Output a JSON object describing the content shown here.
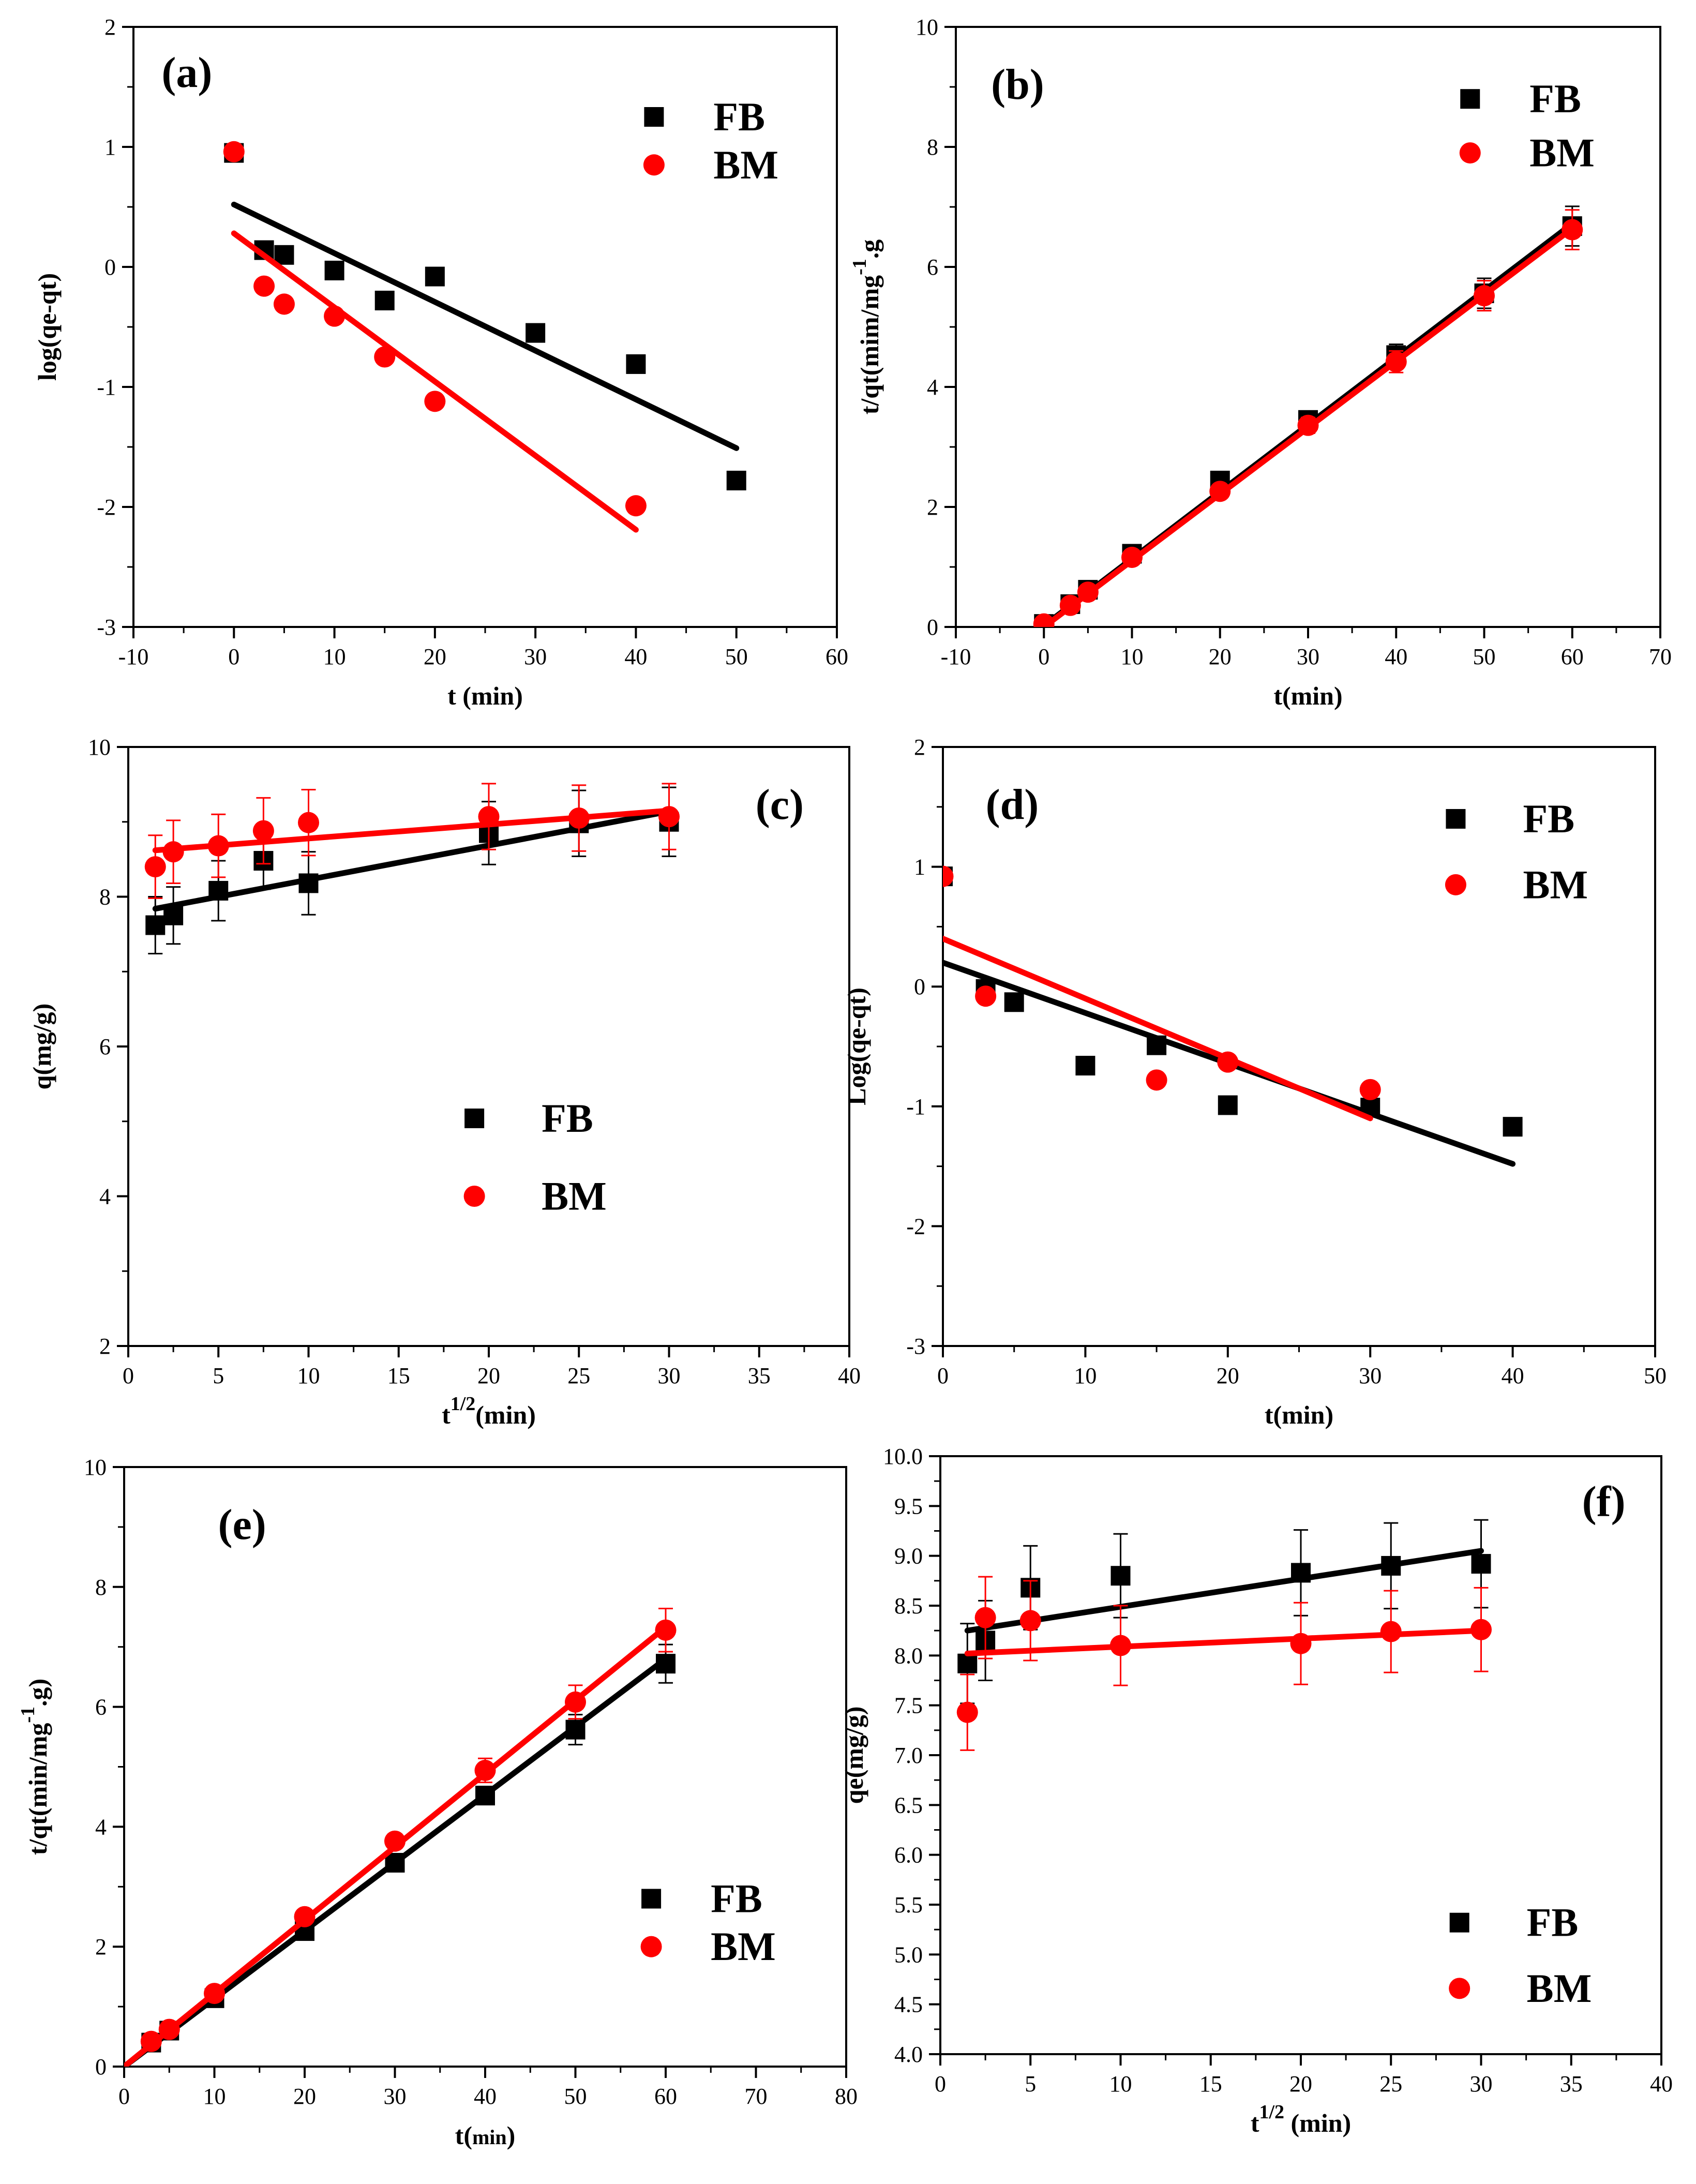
{
  "chart_data": [
    {
      "panel": "(a)",
      "type": "scatter",
      "xlabel": "t (min)",
      "ylabel": "log(qe-qt)",
      "xlim": [
        -10,
        60
      ],
      "ylim": [
        -3,
        2
      ],
      "xticks": [
        -10,
        0,
        10,
        20,
        30,
        40,
        50,
        60
      ],
      "yticks": [
        -3,
        -2,
        -1,
        0,
        1,
        2
      ],
      "legend_position": "top-right",
      "series": [
        {
          "name": "FB",
          "marker": "square",
          "color": "#000000",
          "x": [
            0,
            3,
            5,
            10,
            15,
            20,
            30,
            40,
            50
          ],
          "y": [
            0.95,
            0.14,
            0.1,
            -0.03,
            -0.28,
            -0.08,
            -0.55,
            -0.81,
            -1.78
          ],
          "fit": {
            "x": [
              0,
              50
            ],
            "y": [
              0.52,
              -1.51
            ]
          }
        },
        {
          "name": "BM",
          "marker": "circle",
          "color": "#ff0000",
          "x": [
            0,
            3,
            5,
            10,
            15,
            20,
            40
          ],
          "y": [
            0.96,
            -0.16,
            -0.31,
            -0.41,
            -0.75,
            -1.12,
            -1.99
          ],
          "fit": {
            "x": [
              0,
              40
            ],
            "y": [
              0.28,
              -2.19
            ]
          }
        }
      ]
    },
    {
      "panel": "(b)",
      "type": "scatter",
      "xlabel": "t(min)",
      "ylabel": "t/qt(mim/mg",
      "ylabel_sup": "-1",
      "ylabel_tail": ".g",
      "xlim": [
        -10,
        70
      ],
      "ylim": [
        0,
        10
      ],
      "xticks": [
        -10,
        0,
        10,
        20,
        30,
        40,
        50,
        60,
        70
      ],
      "yticks": [
        0,
        2,
        4,
        6,
        8,
        10
      ],
      "legend_position": "top-right",
      "series": [
        {
          "name": "FB",
          "marker": "square",
          "color": "#000000",
          "x": [
            0,
            3,
            5,
            10,
            20,
            30,
            40,
            50,
            60
          ],
          "y": [
            0.05,
            0.38,
            0.62,
            1.22,
            2.44,
            3.45,
            4.53,
            5.56,
            6.68
          ],
          "err": [
            0.04,
            0.06,
            0.07,
            0.09,
            0.1,
            0.13,
            0.18,
            0.25,
            0.33
          ],
          "fit": {
            "x": [
              0,
              60
            ],
            "y": [
              0.02,
              6.72
            ]
          }
        },
        {
          "name": "BM",
          "marker": "circle",
          "color": "#ff0000",
          "x": [
            0,
            3,
            5,
            10,
            20,
            30,
            40,
            50,
            60
          ],
          "y": [
            0.05,
            0.36,
            0.58,
            1.16,
            2.26,
            3.36,
            4.42,
            5.52,
            6.62
          ],
          "err": [
            0.04,
            0.06,
            0.07,
            0.09,
            0.1,
            0.13,
            0.18,
            0.25,
            0.33
          ],
          "fit": {
            "x": [
              0,
              60
            ],
            "y": [
              0.0,
              6.64
            ]
          }
        }
      ]
    },
    {
      "panel": "(c)",
      "type": "scatter",
      "xlabel": "t",
      "xlabel_sup": "1/2",
      "xlabel_tail": "(min)",
      "ylabel": "q(mg/g)",
      "xlim": [
        0,
        40
      ],
      "ylim": [
        2,
        10
      ],
      "xticks": [
        0,
        5,
        10,
        15,
        20,
        25,
        30,
        35,
        40
      ],
      "yticks": [
        2,
        4,
        6,
        8,
        10
      ],
      "legend_position": "lower-center",
      "series": [
        {
          "name": "FB",
          "marker": "square",
          "color": "#000000",
          "x": [
            1.5,
            2.5,
            5,
            7.5,
            10,
            20,
            25,
            30
          ],
          "y": [
            7.62,
            7.75,
            8.08,
            8.48,
            8.18,
            8.85,
            8.98,
            9.0
          ],
          "err": [
            0.38,
            0.38,
            0.4,
            0.38,
            0.42,
            0.42,
            0.44,
            0.46
          ],
          "fit": {
            "x": [
              1.5,
              30
            ],
            "y": [
              7.84,
              9.14
            ]
          }
        },
        {
          "name": "BM",
          "marker": "circle",
          "color": "#ff0000",
          "x": [
            1.5,
            2.5,
            5,
            7.5,
            10,
            20,
            25,
            30
          ],
          "y": [
            8.4,
            8.6,
            8.68,
            8.88,
            8.99,
            9.07,
            9.05,
            9.07
          ],
          "err": [
            0.42,
            0.42,
            0.42,
            0.44,
            0.44,
            0.44,
            0.44,
            0.44
          ],
          "fit": {
            "x": [
              1.5,
              30
            ],
            "y": [
              8.62,
              9.15
            ]
          }
        }
      ]
    },
    {
      "panel": "(d)",
      "type": "scatter",
      "xlabel": "t(min)",
      "ylabel": "Log(qe-qt)",
      "xlim": [
        0,
        50
      ],
      "ylim": [
        -3,
        2
      ],
      "xticks": [
        0,
        10,
        20,
        30,
        40,
        50
      ],
      "yticks": [
        -3,
        -2,
        -1,
        0,
        1,
        2
      ],
      "legend_position": "top-right",
      "series": [
        {
          "name": "FB",
          "marker": "square",
          "color": "#000000",
          "x": [
            0,
            3,
            5,
            10,
            15,
            20,
            30,
            40
          ],
          "y": [
            0.92,
            -0.02,
            -0.13,
            -0.66,
            -0.49,
            -0.99,
            -1.01,
            -1.17
          ],
          "fit": {
            "x": [
              0,
              40
            ],
            "y": [
              0.2,
              -1.48
            ]
          }
        },
        {
          "name": "BM",
          "marker": "circle",
          "color": "#ff0000",
          "x": [
            0,
            3,
            15,
            20,
            30
          ],
          "y": [
            0.92,
            -0.08,
            -0.78,
            -0.63,
            -0.86
          ],
          "fit": {
            "x": [
              0,
              30
            ],
            "y": [
              0.4,
              -1.1
            ]
          }
        }
      ]
    },
    {
      "panel": "(e)",
      "type": "scatter",
      "xlabel": "t(",
      "xlabel_small": "min",
      "xlabel_tail": ")",
      "ylabel": "t/qt(min/mg",
      "ylabel_sup": "-1",
      "ylabel_tail": ".g)",
      "xlim": [
        0,
        80
      ],
      "ylim": [
        0,
        10
      ],
      "xticks": [
        0,
        10,
        20,
        30,
        40,
        50,
        60,
        70,
        80
      ],
      "yticks": [
        0,
        2,
        4,
        6,
        8,
        10
      ],
      "legend_position": "lower-right",
      "series": [
        {
          "name": "FB",
          "marker": "square",
          "color": "#000000",
          "x": [
            3,
            5,
            10,
            20,
            30,
            40,
            50,
            60
          ],
          "y": [
            0.4,
            0.6,
            1.14,
            2.26,
            3.4,
            4.52,
            5.62,
            6.72
          ],
          "err": [
            0.04,
            0.05,
            0.06,
            0.1,
            0.12,
            0.15,
            0.25,
            0.32
          ],
          "fit": {
            "x": [
              0,
              60
            ],
            "y": [
              0.0,
              6.8
            ]
          }
        },
        {
          "name": "BM",
          "marker": "circle",
          "color": "#ff0000",
          "x": [
            3,
            5,
            10,
            20,
            30,
            40,
            50,
            60
          ],
          "y": [
            0.42,
            0.62,
            1.22,
            2.5,
            3.76,
            4.94,
            6.08,
            7.28
          ],
          "err": [
            0.04,
            0.05,
            0.06,
            0.1,
            0.12,
            0.2,
            0.28,
            0.36
          ],
          "fit": {
            "x": [
              0,
              60
            ],
            "y": [
              0.0,
              7.33
            ]
          }
        }
      ]
    },
    {
      "panel": "(f)",
      "type": "scatter",
      "xlabel": "t",
      "xlabel_sup": "1/2",
      "xlabel_tail": " (min)",
      "ylabel": "qe(mg/g)",
      "xlim": [
        0,
        40
      ],
      "ylim": [
        4.0,
        10.0
      ],
      "xticks": [
        0,
        5,
        10,
        15,
        20,
        25,
        30,
        35,
        40
      ],
      "yticks": [
        4.0,
        4.5,
        5.0,
        5.5,
        6.0,
        6.5,
        7.0,
        7.5,
        8.0,
        8.5,
        9.0,
        9.5,
        10.0
      ],
      "legend_position": "lower-right",
      "series": [
        {
          "name": "FB",
          "marker": "square",
          "color": "#000000",
          "x": [
            1.5,
            2.5,
            5,
            10,
            20,
            25,
            30
          ],
          "y": [
            7.92,
            8.15,
            8.68,
            8.8,
            8.83,
            8.9,
            8.92
          ],
          "err": [
            0.4,
            0.4,
            0.42,
            0.42,
            0.43,
            0.43,
            0.44
          ],
          "fit": {
            "x": [
              1.5,
              30
            ],
            "y": [
              8.25,
              9.05
            ]
          }
        },
        {
          "name": "BM",
          "marker": "circle",
          "color": "#ff0000",
          "x": [
            1.5,
            2.5,
            5,
            10,
            20,
            25,
            30
          ],
          "y": [
            7.43,
            8.38,
            8.35,
            8.1,
            8.12,
            8.24,
            8.26
          ],
          "err": [
            0.38,
            0.41,
            0.4,
            0.4,
            0.41,
            0.41,
            0.42
          ],
          "fit": {
            "x": [
              1.5,
              30
            ],
            "y": [
              8.02,
              8.25
            ]
          }
        }
      ]
    }
  ]
}
